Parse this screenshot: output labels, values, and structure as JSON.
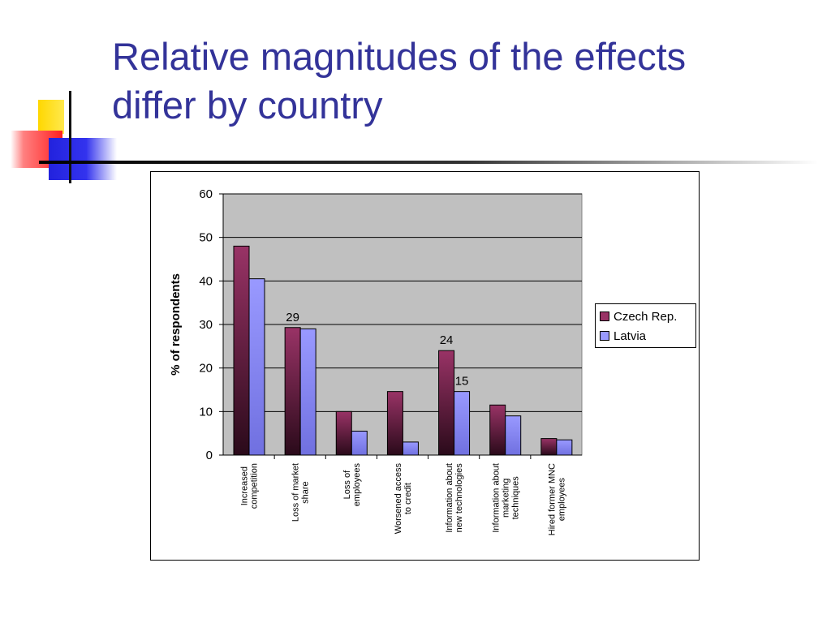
{
  "slide": {
    "title_line1": "Relative magnitudes of the effects",
    "title_line2": "differ by country"
  },
  "colors": {
    "title": "#333399",
    "plot_bg": "#c0c0c0",
    "czech": "#993366",
    "czech_dark": "#2a0a1a",
    "latvia": "#9999ff",
    "latvia_dark": "#7070e0"
  },
  "chart_data": {
    "type": "bar",
    "title": "",
    "xlabel": "",
    "ylabel": "% of respondents",
    "ylim": [
      0,
      60
    ],
    "yticks": [
      0,
      10,
      20,
      30,
      40,
      50,
      60
    ],
    "grid": true,
    "legend_position": "right",
    "categories": [
      [
        "Increased",
        "competition"
      ],
      [
        "Loss of market",
        "share"
      ],
      [
        "Loss of",
        "employees"
      ],
      [
        "Worsened access",
        "to credit"
      ],
      [
        "Information about",
        "new technologies"
      ],
      [
        "Information about",
        "marketing",
        "techniques"
      ],
      [
        "Hired former MNC",
        "employees"
      ]
    ],
    "series": [
      {
        "name": "Czech Rep.",
        "values": [
          48,
          29.3,
          10,
          14.6,
          24,
          11.5,
          3.8
        ]
      },
      {
        "name": "Latvia",
        "values": [
          40.5,
          29,
          5.5,
          3,
          14.6,
          9,
          3.5
        ]
      }
    ],
    "annotations": [
      {
        "text": "29",
        "category_index": 1,
        "series_index": 0
      },
      {
        "text": "24",
        "category_index": 4,
        "series_index": 0
      },
      {
        "text": "15",
        "category_index": 4,
        "series_index": 1
      }
    ]
  }
}
